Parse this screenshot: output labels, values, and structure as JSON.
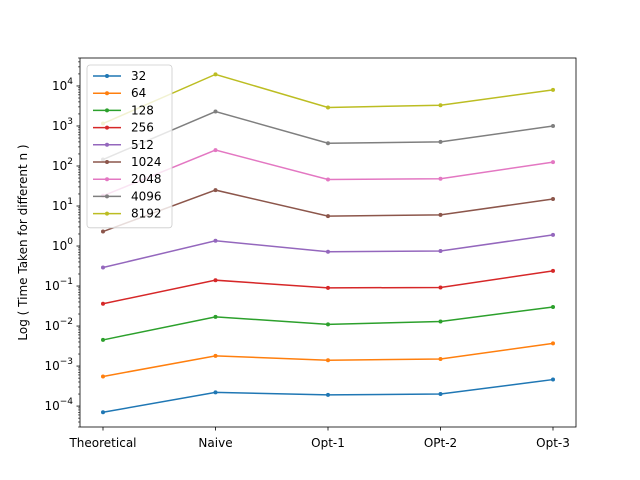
{
  "chart_data": {
    "type": "line",
    "title": "",
    "xlabel": "",
    "ylabel": "Log ( Time Taken for different n )",
    "yscale": "log",
    "ylim": [
      3e-05,
      50000
    ],
    "categories": [
      "Theoretical",
      "Naive",
      "Opt-1",
      "OPt-2",
      "Opt-3"
    ],
    "y_ticks": [
      {
        "value": 0.0001,
        "base": "10",
        "exp": "−4"
      },
      {
        "value": 0.001,
        "base": "10",
        "exp": "−3"
      },
      {
        "value": 0.01,
        "base": "10",
        "exp": "−2"
      },
      {
        "value": 0.1,
        "base": "10",
        "exp": "−1"
      },
      {
        "value": 1,
        "base": "10",
        "exp": "0"
      },
      {
        "value": 10,
        "base": "10",
        "exp": "1"
      },
      {
        "value": 100,
        "base": "10",
        "exp": "2"
      },
      {
        "value": 1000,
        "base": "10",
        "exp": "3"
      },
      {
        "value": 10000,
        "base": "10",
        "exp": "4"
      }
    ],
    "legend_position": "top-left",
    "grid": false,
    "series": [
      {
        "name": "32",
        "color": "#1f77b4",
        "values": [
          7e-05,
          0.00022,
          0.00019,
          0.0002,
          0.00046
        ]
      },
      {
        "name": "64",
        "color": "#ff7f0e",
        "values": [
          0.00055,
          0.0018,
          0.0014,
          0.0015,
          0.0037
        ]
      },
      {
        "name": "128",
        "color": "#2ca02c",
        "values": [
          0.0045,
          0.017,
          0.011,
          0.013,
          0.03
        ]
      },
      {
        "name": "256",
        "color": "#d62728",
        "values": [
          0.036,
          0.14,
          0.09,
          0.092,
          0.24
        ]
      },
      {
        "name": "512",
        "color": "#9467bd",
        "values": [
          0.29,
          1.35,
          0.72,
          0.75,
          1.9
        ]
      },
      {
        "name": "1024",
        "color": "#8c564b",
        "values": [
          2.3,
          25,
          5.6,
          6,
          15
        ]
      },
      {
        "name": "2048",
        "color": "#e377c2",
        "values": [
          18,
          250,
          46,
          48,
          125
        ]
      },
      {
        "name": "4096",
        "color": "#7f7f7f",
        "values": [
          145,
          2300,
          370,
          400,
          1000
        ]
      },
      {
        "name": "8192",
        "color": "#bcbd22",
        "values": [
          1150,
          19500,
          2900,
          3300,
          8000
        ]
      }
    ]
  }
}
